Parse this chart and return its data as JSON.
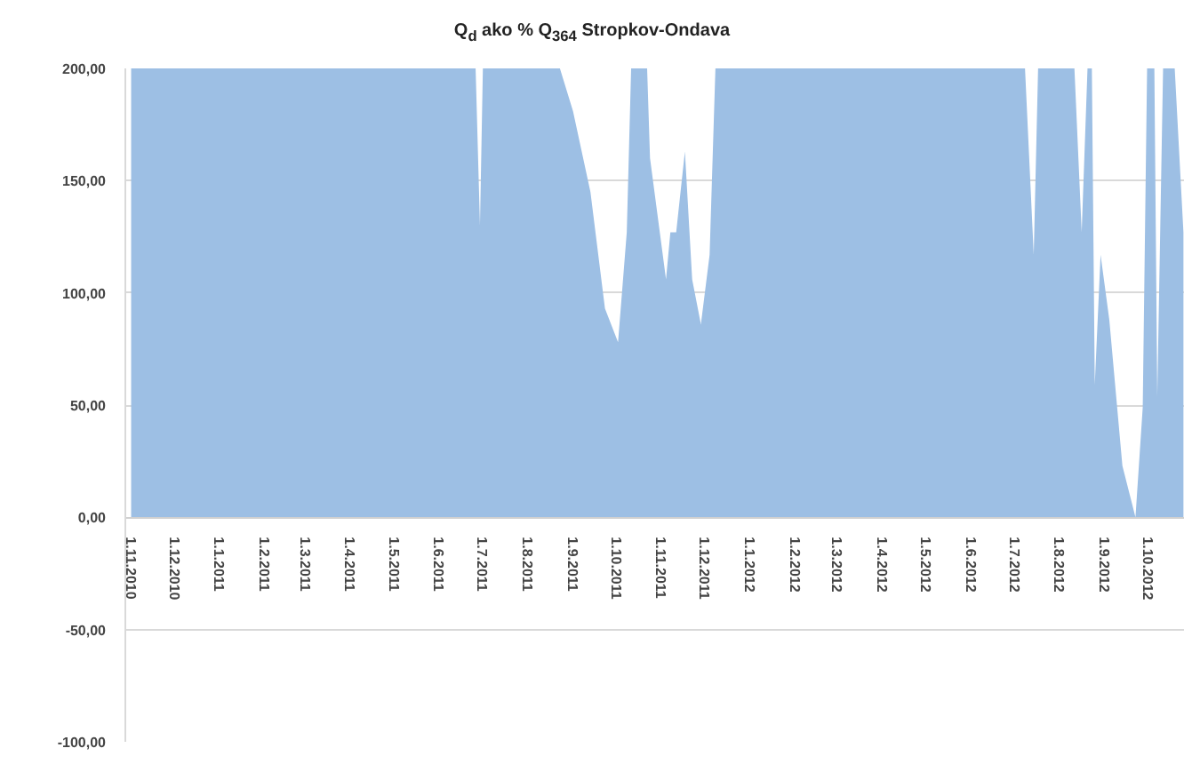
{
  "chart_data": {
    "type": "area",
    "title": "Q$_{d}$ ako % Q$_{364}$ Stropkov-Ondava",
    "x": [
      "2010-11-01",
      "2011-06-26",
      "2011-06-29",
      "2011-07-01",
      "2011-08-23",
      "2011-09-01",
      "2011-09-13",
      "2011-09-23",
      "2011-10-02",
      "2011-10-08",
      "2011-10-11",
      "2011-10-22",
      "2011-10-24",
      "2011-11-04",
      "2011-11-07",
      "2011-11-11",
      "2011-11-17",
      "2011-11-22",
      "2011-11-28",
      "2011-12-04",
      "2011-12-08",
      "2012-07-08",
      "2012-07-14",
      "2012-07-17",
      "2012-08-11",
      "2012-08-16",
      "2012-08-20",
      "2012-08-23",
      "2012-08-25",
      "2012-08-29",
      "2012-09-04",
      "2012-09-13",
      "2012-09-22",
      "2012-09-27",
      "2012-09-30",
      "2012-10-05",
      "2012-10-07",
      "2012-10-11",
      "2012-10-19",
      "2012-10-25"
    ],
    "series": [
      {
        "color": "#9dbfe4",
        "values": [
          200,
          200,
          130,
          200,
          200,
          181,
          145,
          93,
          78,
          127,
          200,
          200,
          160,
          106,
          127,
          127,
          163,
          106,
          86,
          117,
          200,
          200,
          117,
          200,
          200,
          127,
          200,
          200,
          59,
          117,
          88,
          23,
          0,
          49,
          200,
          200,
          54,
          200,
          200,
          127
        ]
      }
    ],
    "xlim": [
      "2010-10-28",
      "2012-10-26"
    ],
    "xticks": [
      {
        "value": "2010-11-01",
        "label": "1.11.2010"
      },
      {
        "value": "2010-12-01",
        "label": "1.12.2010"
      },
      {
        "value": "2011-01-01",
        "label": "1.1.2011"
      },
      {
        "value": "2011-02-01",
        "label": "1.2.2011"
      },
      {
        "value": "2011-03-01",
        "label": "1.3.2011"
      },
      {
        "value": "2011-04-01",
        "label": "1.4.2011"
      },
      {
        "value": "2011-05-01",
        "label": "1.5.2011"
      },
      {
        "value": "2011-06-01",
        "label": "1.6.2011"
      },
      {
        "value": "2011-07-01",
        "label": "1.7.2011"
      },
      {
        "value": "2011-08-01",
        "label": "1.8.2011"
      },
      {
        "value": "2011-09-01",
        "label": "1.9.2011"
      },
      {
        "value": "2011-10-01",
        "label": "1.10.2011"
      },
      {
        "value": "2011-11-01",
        "label": "1.11.2011"
      },
      {
        "value": "2011-12-01",
        "label": "1.12.2011"
      },
      {
        "value": "2012-01-01",
        "label": "1.1.2012"
      },
      {
        "value": "2012-02-01",
        "label": "1.2.2012"
      },
      {
        "value": "2012-03-01",
        "label": "1.3.2012"
      },
      {
        "value": "2012-04-01",
        "label": "1.4.2012"
      },
      {
        "value": "2012-05-01",
        "label": "1.5.2012"
      },
      {
        "value": "2012-06-01",
        "label": "1.6.2012"
      },
      {
        "value": "2012-07-01",
        "label": "1.7.2012"
      },
      {
        "value": "2012-08-01",
        "label": "1.8.2012"
      },
      {
        "value": "2012-09-01",
        "label": "1.9.2012"
      },
      {
        "value": "2012-10-01",
        "label": "1.10.2012"
      }
    ],
    "ylim": [
      -100,
      200
    ],
    "yticks": [
      {
        "value": -100,
        "label": "-100,00"
      },
      {
        "value": -50,
        "label": "-50,00"
      },
      {
        "value": 0,
        "label": "0,00"
      },
      {
        "value": 50,
        "label": "50,00"
      },
      {
        "value": 100,
        "label": "100,00"
      },
      {
        "value": 150,
        "label": "150,00"
      },
      {
        "value": 200,
        "label": "200,00"
      }
    ],
    "grid": "y"
  }
}
